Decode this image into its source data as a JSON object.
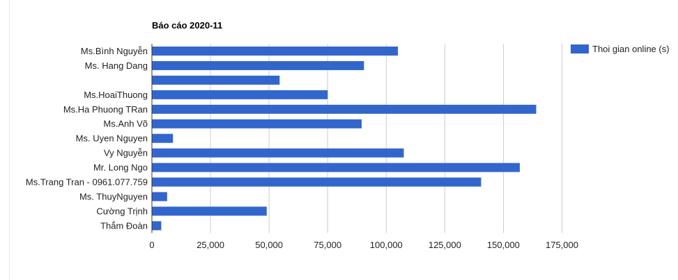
{
  "chart_data": {
    "type": "bar",
    "orientation": "horizontal",
    "title": "Báo cáo 2020-11",
    "categories": [
      "Ms.Bình Nguyễn",
      "Ms. Hang Dang",
      "",
      "Ms.HoaiThuong",
      "Ms.Ha Phuong TRan",
      "Ms.Anh Võ",
      "Ms. Uyen Nguyen",
      "Vy Nguyễn",
      "Mr. Long Ngo",
      "Ms.Trang Tran - 0961.077.759",
      "Ms. ThuyNguyen",
      "Cường Trịnh",
      "Thắm Đoàn"
    ],
    "series": [
      {
        "name": "Thoi gian online (s)",
        "color": "#3366cc",
        "values": [
          105000,
          90500,
          54500,
          75000,
          164000,
          89500,
          9000,
          107500,
          157000,
          140500,
          6500,
          49000,
          4000
        ]
      }
    ],
    "xlim": [
      0,
      175000
    ],
    "xticks": [
      0,
      25000,
      50000,
      75000,
      100000,
      125000,
      150000,
      175000
    ],
    "xtick_labels": [
      "0",
      "25,000",
      "50,000",
      "75,000",
      "100,000",
      "125,000",
      "150,000",
      "175,000"
    ],
    "grid": true,
    "legend_position": "right"
  }
}
